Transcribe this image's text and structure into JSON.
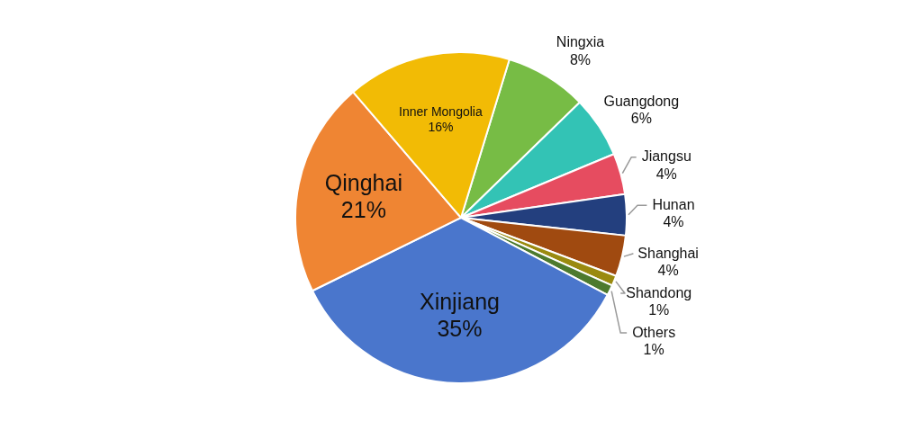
{
  "chart_data": {
    "type": "pie",
    "categories": [
      "Ningxia",
      "Guangdong",
      "Jiangsu",
      "Hunan",
      "Shanghai",
      "Shandong",
      "Others",
      "Xinjiang",
      "Qinghai",
      "Inner Mongolia"
    ],
    "values": [
      8,
      6,
      4,
      4,
      4,
      1,
      1,
      35,
      21,
      16
    ],
    "value_labels": [
      "8%",
      "6%",
      "4%",
      "4%",
      "4%",
      "1%",
      "1%",
      "35%",
      "21%",
      "16%"
    ],
    "colors": [
      "#77bc45",
      "#33c3b5",
      "#e64c60",
      "#233f7e",
      "#a04a10",
      "#9a8a0f",
      "#4d7a2e",
      "#4a76cc",
      "#ef8533",
      "#f2bb05"
    ],
    "legend": false
  }
}
